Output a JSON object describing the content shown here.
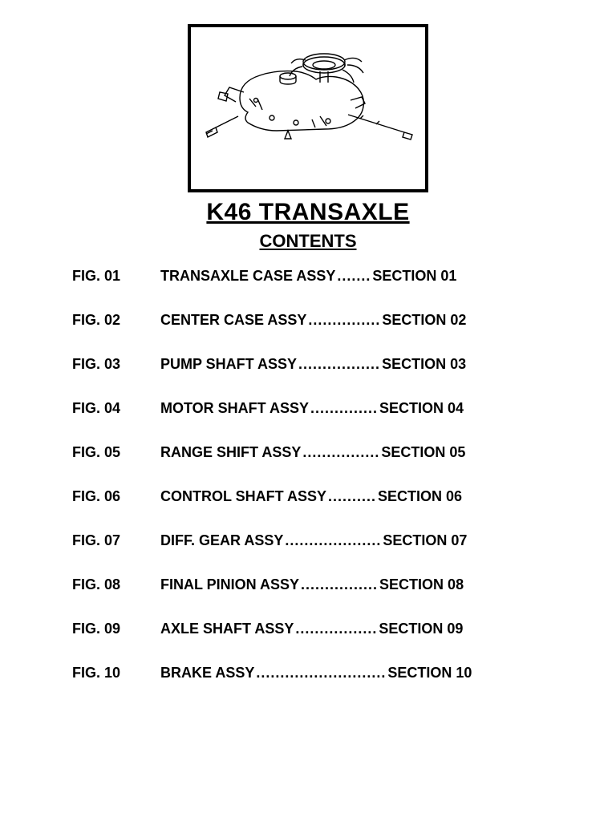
{
  "title": "K46 TRANSAXLE",
  "subtitle": "CONTENTS",
  "rows": [
    {
      "fig": "FIG. 01",
      "desc": "TRANSAXLE CASE ASSY",
      "dots": ".......",
      "section": "SECTION 01"
    },
    {
      "fig": "FIG. 02",
      "desc": "CENTER CASE ASSY",
      "dots": "...............",
      "section": "SECTION 02"
    },
    {
      "fig": "FIG. 03",
      "desc": "PUMP SHAFT ASSY",
      "dots": ".................",
      "section": "SECTION 03"
    },
    {
      "fig": "FIG. 04",
      "desc": "MOTOR SHAFT ASSY",
      "dots": "..............",
      "section": "SECTION 04"
    },
    {
      "fig": "FIG. 05",
      "desc": "RANGE SHIFT ASSY",
      "dots": "................",
      "section": "SECTION 05"
    },
    {
      "fig": "FIG. 06",
      "desc": "CONTROL SHAFT ASSY",
      "dots": "..........",
      "section": "SECTION 06"
    },
    {
      "fig": "FIG. 07",
      "desc": "DIFF. GEAR ASSY",
      "dots": "....................",
      "section": "SECTION 07"
    },
    {
      "fig": "FIG. 08",
      "desc": "FINAL PINION ASSY",
      "dots": "................",
      "section": "SECTION 08"
    },
    {
      "fig": "FIG. 09",
      "desc": "AXLE SHAFT ASSY",
      "dots": ".................",
      "section": "SECTION 09"
    },
    {
      "fig": "FIG. 10",
      "desc": "BRAKE ASSY",
      "dots": "...........................",
      "section": "SECTION 10"
    }
  ],
  "colors": {
    "stroke": "#000000",
    "bg": "#ffffff"
  }
}
